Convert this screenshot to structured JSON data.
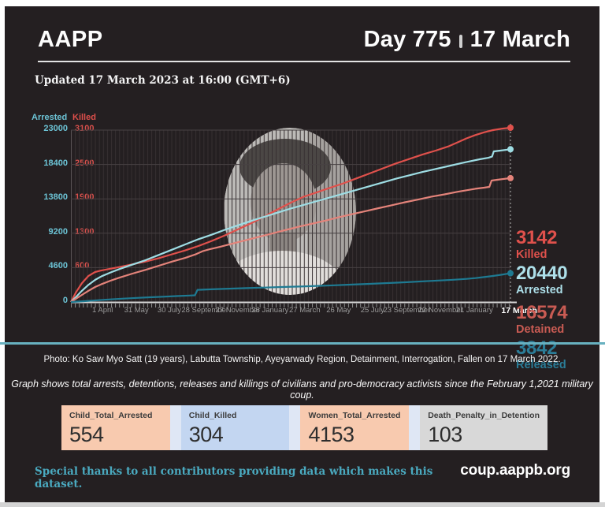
{
  "header": {
    "brand": "AAPP",
    "day": "Day 775",
    "date": "17 March"
  },
  "updated": "Updated 17 March 2023 at 16:00 (GMT+6)",
  "colors": {
    "card_bg": "#241f21",
    "divider": "#68b1c0",
    "accent_teal": "#6cc3d5",
    "accent_red": "#dd4f4b"
  },
  "chart_data": {
    "type": "line",
    "description": "Cumulative totals since the February 1, 2021 military coup",
    "y_axis_left": {
      "label": "Arrested",
      "ticks": [
        "23000",
        "18400",
        "13800",
        "9200",
        "4600",
        "0"
      ],
      "max": 23000
    },
    "y_axis_right_inner": {
      "label": "Killed",
      "ticks": [
        "3100",
        "2500",
        "1900",
        "1300",
        "600"
      ],
      "max": 3100
    },
    "x_ticks": [
      {
        "label": "1 April",
        "f": 0.072
      },
      {
        "label": "31 May",
        "f": 0.149
      },
      {
        "label": "30 July",
        "f": 0.224
      },
      {
        "label": "28 September",
        "f": 0.305
      },
      {
        "label": "27 November",
        "f": 0.38
      },
      {
        "label": "26 January",
        "f": 0.453
      },
      {
        "label": "27 March",
        "f": 0.532
      },
      {
        "label": "26 May",
        "f": 0.609
      },
      {
        "label": "25 July",
        "f": 0.686
      },
      {
        "label": "23 September",
        "f": 0.764
      },
      {
        "label": "22 November",
        "f": 0.841
      },
      {
        "label": "21 January",
        "f": 0.918
      },
      {
        "label": "17 March",
        "f": 1.02,
        "highlight": true
      }
    ],
    "series": [
      {
        "name": "Killed",
        "color": "#e0514c",
        "axis_max": 3100,
        "end_value": 3142,
        "points": [
          [
            0,
            0
          ],
          [
            0.012,
            180
          ],
          [
            0.025,
            340
          ],
          [
            0.04,
            470
          ],
          [
            0.055,
            540
          ],
          [
            0.07,
            570
          ],
          [
            0.09,
            600
          ],
          [
            0.11,
            630
          ],
          [
            0.14,
            680
          ],
          [
            0.17,
            730
          ],
          [
            0.2,
            790
          ],
          [
            0.23,
            860
          ],
          [
            0.26,
            930
          ],
          [
            0.29,
            1010
          ],
          [
            0.32,
            1100
          ],
          [
            0.35,
            1200
          ],
          [
            0.38,
            1310
          ],
          [
            0.41,
            1420
          ],
          [
            0.44,
            1540
          ],
          [
            0.47,
            1670
          ],
          [
            0.5,
            1790
          ],
          [
            0.53,
            1900
          ],
          [
            0.56,
            1980
          ],
          [
            0.59,
            2060
          ],
          [
            0.62,
            2140
          ],
          [
            0.65,
            2230
          ],
          [
            0.68,
            2320
          ],
          [
            0.71,
            2410
          ],
          [
            0.74,
            2500
          ],
          [
            0.77,
            2580
          ],
          [
            0.8,
            2660
          ],
          [
            0.83,
            2730
          ],
          [
            0.86,
            2810
          ],
          [
            0.88,
            2880
          ],
          [
            0.9,
            2950
          ],
          [
            0.92,
            3010
          ],
          [
            0.94,
            3060
          ],
          [
            0.96,
            3100
          ],
          [
            0.98,
            3125
          ],
          [
            1,
            3142
          ]
        ]
      },
      {
        "name": "Arrested",
        "color": "#9edde4",
        "axis_max": 23000,
        "end_value": 20440,
        "points": [
          [
            0,
            0
          ],
          [
            0.012,
            700
          ],
          [
            0.025,
            1500
          ],
          [
            0.04,
            2300
          ],
          [
            0.055,
            2950
          ],
          [
            0.07,
            3450
          ],
          [
            0.09,
            3950
          ],
          [
            0.11,
            4400
          ],
          [
            0.14,
            5000
          ],
          [
            0.17,
            5600
          ],
          [
            0.2,
            6300
          ],
          [
            0.23,
            7000
          ],
          [
            0.26,
            7700
          ],
          [
            0.29,
            8400
          ],
          [
            0.32,
            9000
          ],
          [
            0.35,
            9650
          ],
          [
            0.38,
            10250
          ],
          [
            0.41,
            10850
          ],
          [
            0.44,
            11400
          ],
          [
            0.47,
            11950
          ],
          [
            0.5,
            12500
          ],
          [
            0.53,
            13000
          ],
          [
            0.56,
            13500
          ],
          [
            0.59,
            14000
          ],
          [
            0.62,
            14500
          ],
          [
            0.65,
            15000
          ],
          [
            0.68,
            15500
          ],
          [
            0.71,
            16000
          ],
          [
            0.74,
            16500
          ],
          [
            0.77,
            16950
          ],
          [
            0.8,
            17400
          ],
          [
            0.83,
            17800
          ],
          [
            0.86,
            18200
          ],
          [
            0.89,
            18600
          ],
          [
            0.91,
            18850
          ],
          [
            0.93,
            19100
          ],
          [
            0.95,
            19300
          ],
          [
            0.958,
            19450
          ],
          [
            0.962,
            20150
          ],
          [
            0.975,
            20250
          ],
          [
            1,
            20440
          ]
        ]
      },
      {
        "name": "Detained",
        "color": "#e4837a",
        "axis_max": 23000,
        "end_value": 16574,
        "points": [
          [
            0,
            0
          ],
          [
            0.012,
            450
          ],
          [
            0.025,
            950
          ],
          [
            0.04,
            1500
          ],
          [
            0.055,
            2000
          ],
          [
            0.07,
            2400
          ],
          [
            0.09,
            2850
          ],
          [
            0.11,
            3250
          ],
          [
            0.14,
            3800
          ],
          [
            0.17,
            4300
          ],
          [
            0.2,
            4850
          ],
          [
            0.23,
            5400
          ],
          [
            0.26,
            5900
          ],
          [
            0.285,
            6400
          ],
          [
            0.3,
            6800
          ],
          [
            0.315,
            7050
          ],
          [
            0.34,
            7400
          ],
          [
            0.37,
            7850
          ],
          [
            0.4,
            8300
          ],
          [
            0.43,
            8750
          ],
          [
            0.46,
            9200
          ],
          [
            0.49,
            9650
          ],
          [
            0.52,
            10100
          ],
          [
            0.55,
            10500
          ],
          [
            0.58,
            10900
          ],
          [
            0.61,
            11350
          ],
          [
            0.64,
            11750
          ],
          [
            0.67,
            12150
          ],
          [
            0.7,
            12550
          ],
          [
            0.73,
            12950
          ],
          [
            0.76,
            13350
          ],
          [
            0.79,
            13700
          ],
          [
            0.82,
            14100
          ],
          [
            0.85,
            14400
          ],
          [
            0.88,
            14750
          ],
          [
            0.9,
            14950
          ],
          [
            0.92,
            15150
          ],
          [
            0.94,
            15300
          ],
          [
            0.952,
            15400
          ],
          [
            0.957,
            16250
          ],
          [
            0.975,
            16400
          ],
          [
            1,
            16574
          ]
        ]
      },
      {
        "name": "Released",
        "color": "#1e7a92",
        "axis_max": 23000,
        "end_value": 3842,
        "points": [
          [
            0,
            0
          ],
          [
            0.03,
            110
          ],
          [
            0.06,
            230
          ],
          [
            0.09,
            350
          ],
          [
            0.12,
            450
          ],
          [
            0.15,
            550
          ],
          [
            0.18,
            630
          ],
          [
            0.21,
            710
          ],
          [
            0.24,
            790
          ],
          [
            0.27,
            860
          ],
          [
            0.282,
            900
          ],
          [
            0.288,
            1620
          ],
          [
            0.32,
            1700
          ],
          [
            0.36,
            1780
          ],
          [
            0.4,
            1860
          ],
          [
            0.44,
            1930
          ],
          [
            0.48,
            2000
          ],
          [
            0.52,
            2070
          ],
          [
            0.56,
            2150
          ],
          [
            0.6,
            2240
          ],
          [
            0.64,
            2330
          ],
          [
            0.68,
            2430
          ],
          [
            0.72,
            2530
          ],
          [
            0.76,
            2640
          ],
          [
            0.8,
            2760
          ],
          [
            0.84,
            2880
          ],
          [
            0.87,
            2980
          ],
          [
            0.9,
            3090
          ],
          [
            0.92,
            3200
          ],
          [
            0.94,
            3330
          ],
          [
            0.96,
            3480
          ],
          [
            0.98,
            3650
          ],
          [
            1,
            3842
          ]
        ]
      }
    ],
    "summary": [
      {
        "value": "3142",
        "label": "Killed",
        "color": "#e0514c"
      },
      {
        "value": "20440",
        "label": "Arrested",
        "color": "#addfe9"
      },
      {
        "value": "16574",
        "label": "Detained",
        "color": "#c95b53"
      },
      {
        "value": "3842",
        "label": "Released",
        "color": "#2b7d98"
      }
    ],
    "legend_position": "right",
    "grid": true
  },
  "captions": {
    "photo": "Photo: Ko Saw Myo Satt (19 years), Labutta Township, Ayeyarwady Region, Detainment, Interrogation, Fallen on 17 March 2022.",
    "graph": "Graph shows total arrests, detentions, releases and killings of civilians and pro-democracy activists since the February 1,2021 military coup."
  },
  "stats": [
    {
      "label": "Child_Total_Arrested",
      "value": "554",
      "color": "#f8caaf"
    },
    {
      "label": "Child_Killed",
      "value": "304",
      "color": "#c3d6f1"
    },
    {
      "label": "Women_Total_Arrested",
      "value": "4153",
      "color": "#f8caaf"
    },
    {
      "label": "Death_Penalty_in_Detention",
      "value": "103",
      "color": "#d8d8d8"
    }
  ],
  "footer": {
    "thanks": "Special thanks to all contributors providing data which makes this dataset.",
    "url": "coup.aappb.org"
  }
}
